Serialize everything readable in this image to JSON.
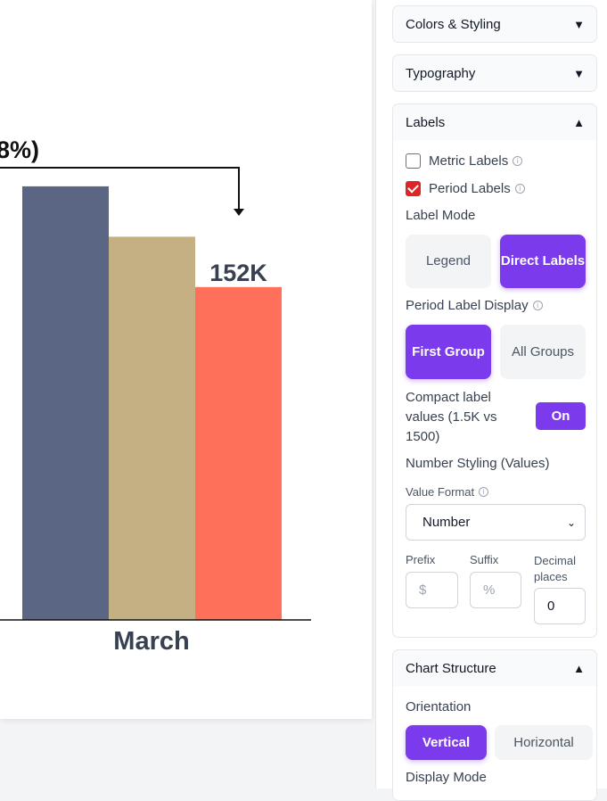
{
  "chart": {
    "title_fragment": "8%)",
    "category": "March",
    "value_label": "152K",
    "colors": {
      "bar1": "#5b6584",
      "bar2": "#c4b083",
      "bar3": "#ff705a",
      "axis": "#111111",
      "title": "#111111",
      "label": "#374151"
    }
  },
  "chart_data": {
    "type": "bar",
    "categories": [
      "March"
    ],
    "series": [
      {
        "values": [
          198
        ]
      },
      {
        "values": [
          175
        ]
      },
      {
        "values": [
          152
        ]
      }
    ],
    "data_labels": [
      "",
      "",
      "152K"
    ],
    "ylim": [
      0,
      200
    ]
  },
  "panel": {
    "colors_styling": {
      "title": "Colors & Styling",
      "caret": "▼"
    },
    "typography": {
      "title": "Typography",
      "caret": "▼"
    },
    "labels": {
      "title": "Labels",
      "caret": "▲",
      "metric_labels": "Metric Labels",
      "metric_labels_checked": false,
      "period_labels": "Period Labels",
      "period_labels_checked": true,
      "label_mode": "Label Mode",
      "legend": "Legend",
      "direct_labels": "Direct Labels",
      "period_label_display": "Period Label Display",
      "first_group": "First Group",
      "all_groups": "All Groups",
      "compact_label": "Compact label values (1.5K vs 1500)",
      "compact_toggle": "On",
      "number_styling": "Number Styling (Values)",
      "value_format": "Value Format",
      "value_format_selected": "Number",
      "prefix": "Prefix",
      "prefix_placeholder": "$",
      "suffix": "Suffix",
      "suffix_placeholder": "%",
      "decimal_places": "Decimal places",
      "decimal_value": "0"
    },
    "chart_structure": {
      "title": "Chart Structure",
      "caret": "▲",
      "orientation": "Orientation",
      "vertical": "Vertical",
      "horizontal": "Horizontal",
      "display_mode": "Display Mode"
    },
    "info_icon": "info-icon"
  }
}
